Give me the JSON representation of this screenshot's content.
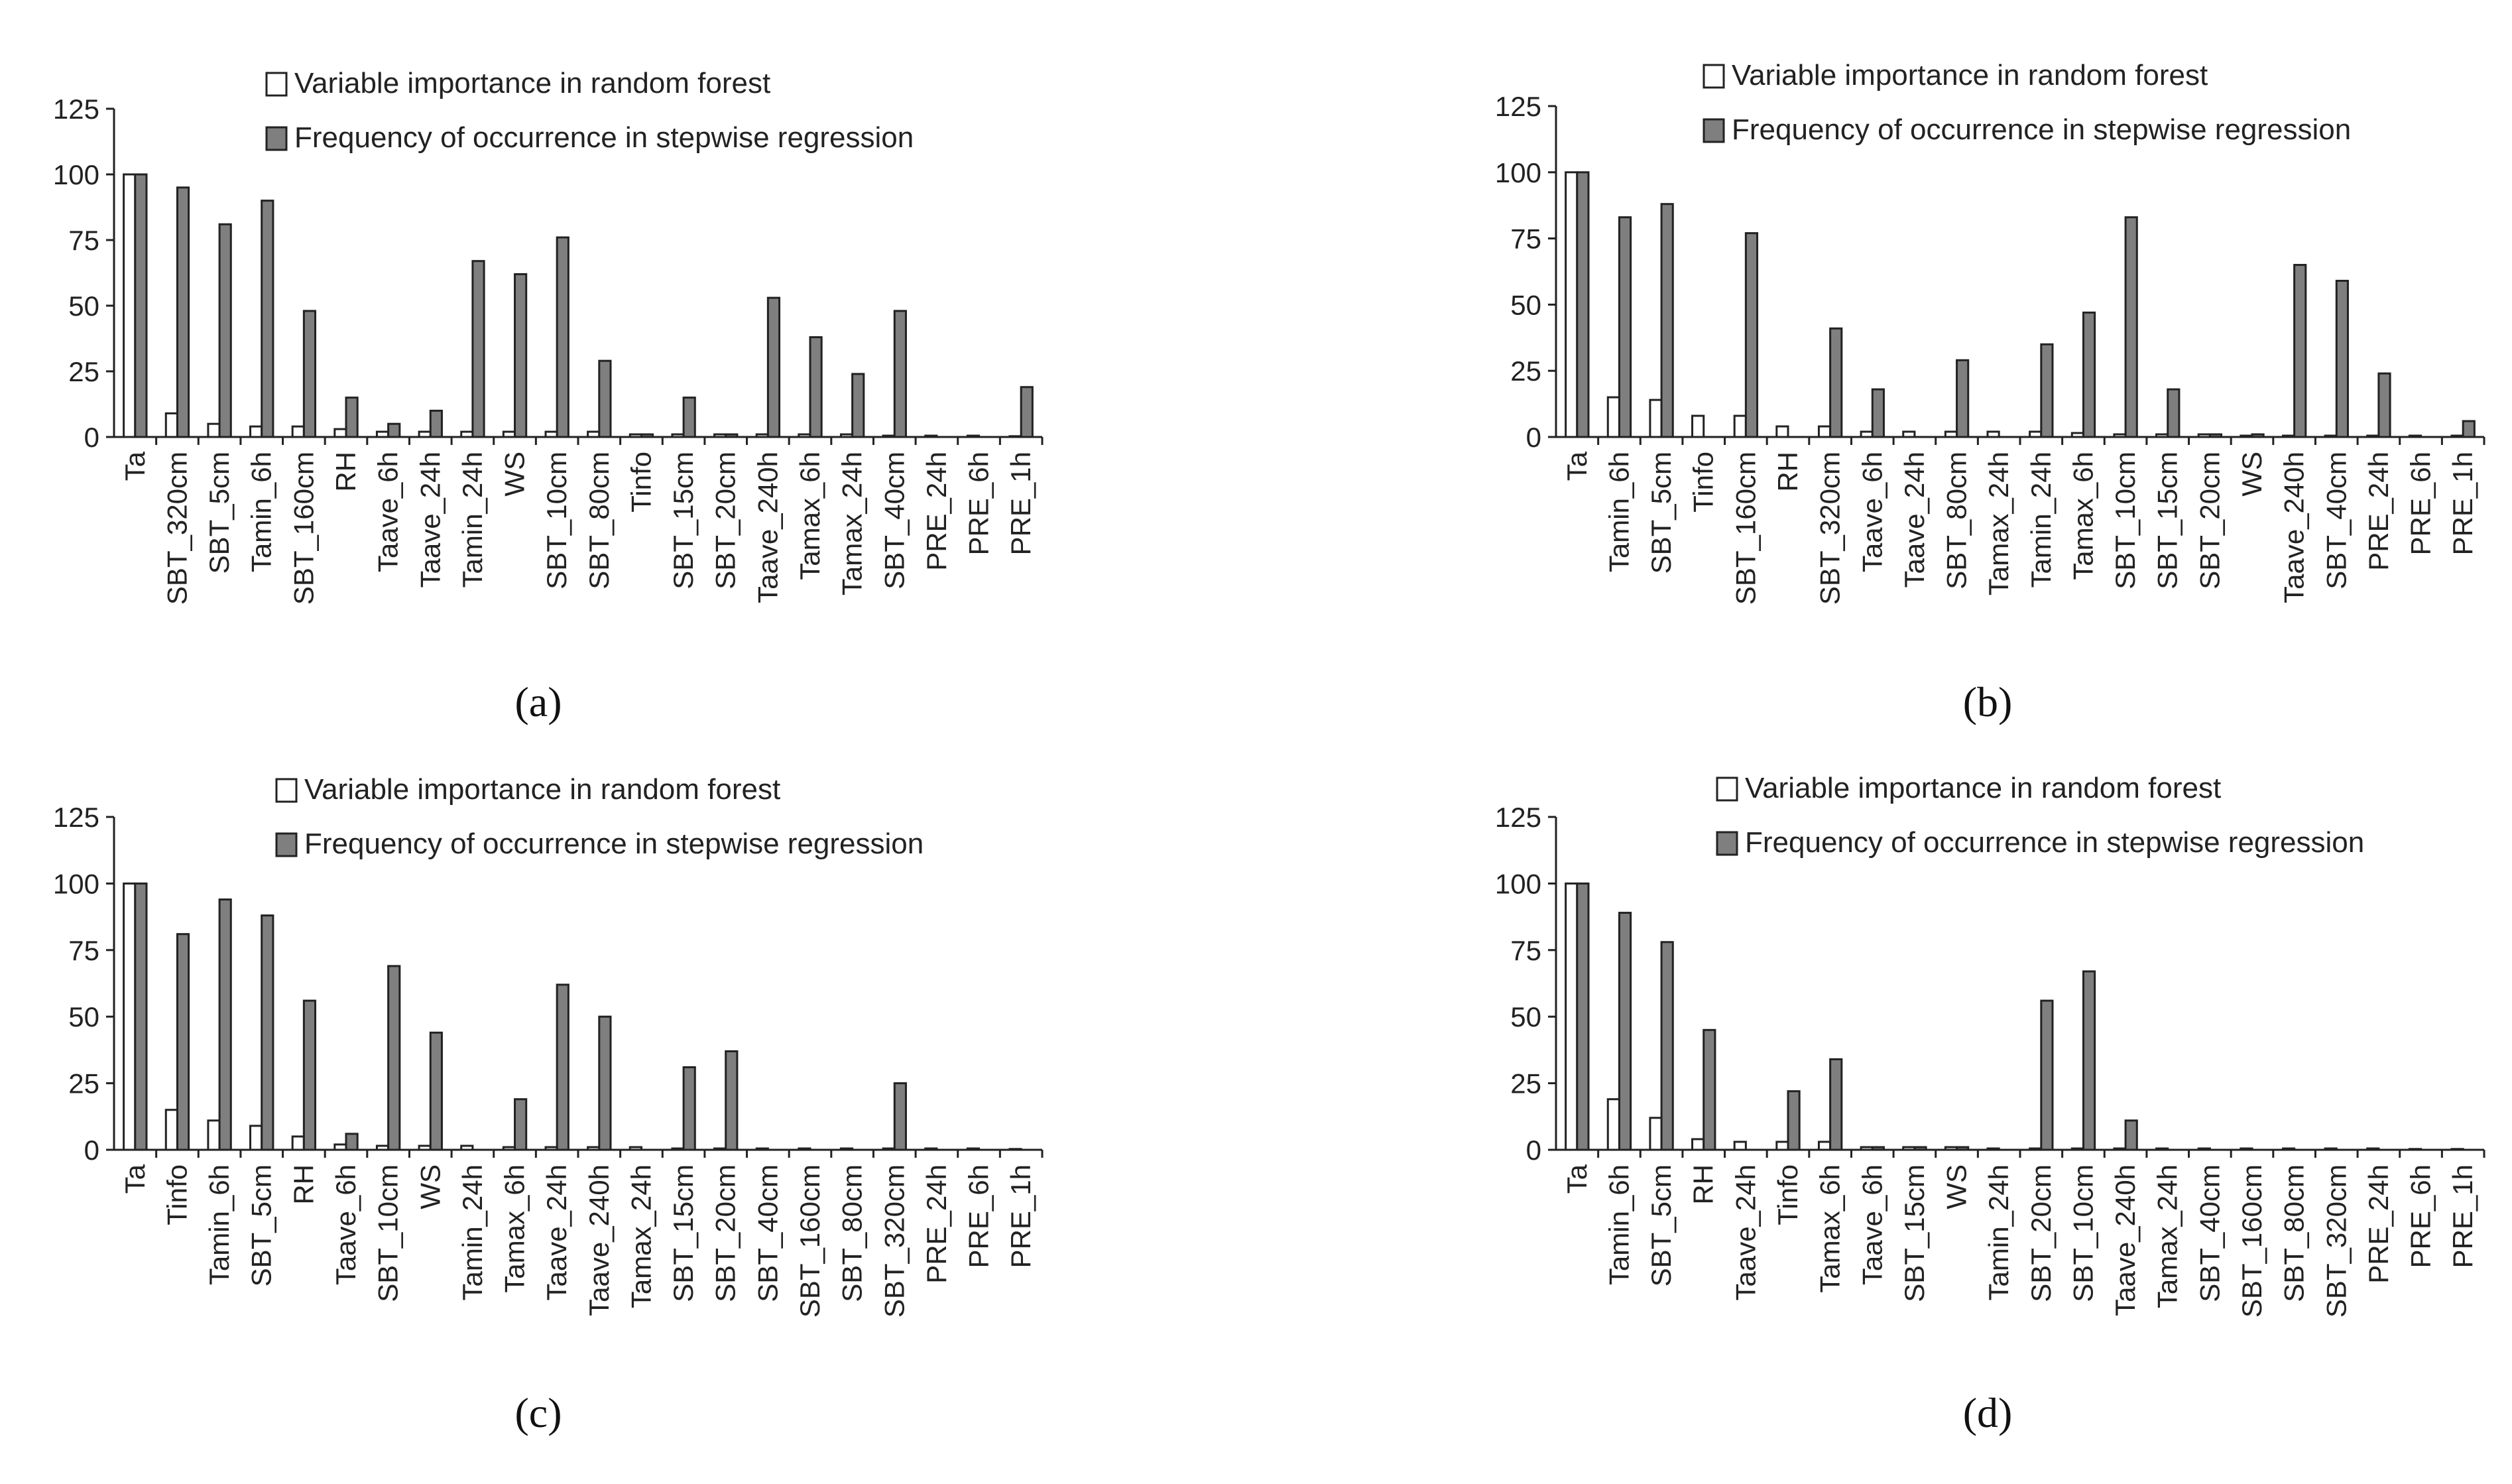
{
  "legend": {
    "rf_label": "Variable importance in random forest",
    "sw_label": "Frequency of occurrence in stepwise regression"
  },
  "colors": {
    "rf_fill": "#ffffff",
    "sw_fill": "#7f7f7f",
    "stroke": "#222222"
  },
  "chart_data": [
    {
      "type": "bar",
      "panel_label": "(a)",
      "ylim": [
        0,
        125
      ],
      "yticks": [
        "0",
        "25",
        "50",
        "75",
        "100",
        "125"
      ],
      "categories": [
        "Ta",
        "SBT_320cm",
        "SBT_5cm",
        "Tamin_6h",
        "SBT_160cm",
        "RH",
        "Taave_6h",
        "Taave_24h",
        "Tamin_24h",
        "WS",
        "SBT_10cm",
        "SBT_80cm",
        "Tinfo",
        "SBT_15cm",
        "SBT_20cm",
        "Taave_240h",
        "Tamax_6h",
        "Tamax_24h",
        "SBT_40cm",
        "PRE_24h",
        "PRE_6h",
        "PRE_1h"
      ],
      "series": [
        {
          "name": "Variable importance in random forest",
          "values": [
            100,
            9,
            5,
            4,
            4,
            3,
            2,
            2,
            2,
            2,
            2,
            2,
            1,
            1,
            1,
            1,
            1,
            1,
            0.5,
            0.5,
            0.5,
            0.3
          ]
        },
        {
          "name": "Frequency of occurrence in stepwise regression",
          "values": [
            100,
            95,
            81,
            90,
            48,
            15,
            5,
            10,
            67,
            62,
            76,
            29,
            1,
            15,
            1,
            53,
            38,
            24,
            48,
            0,
            0,
            19
          ]
        }
      ]
    },
    {
      "type": "bar",
      "panel_label": "(b)",
      "ylim": [
        0,
        125
      ],
      "yticks": [
        "0",
        "25",
        "50",
        "75",
        "100",
        "125"
      ],
      "categories": [
        "Ta",
        "Tamin_6h",
        "SBT_5cm",
        "Tinfo",
        "SBT_160cm",
        "RH",
        "SBT_320cm",
        "Taave_6h",
        "Taave_24h",
        "SBT_80cm",
        "Tamax_24h",
        "Tamin_24h",
        "Tamax_6h",
        "SBT_10cm",
        "SBT_15cm",
        "SBT_20cm",
        "WS",
        "Taave_240h",
        "SBT_40cm",
        "PRE_24h",
        "PRE_6h",
        "PRE_1h"
      ],
      "series": [
        {
          "name": "Variable importance in random forest",
          "values": [
            100,
            15,
            14,
            8,
            8,
            4,
            4,
            2,
            2,
            2,
            2,
            2,
            1.5,
            1,
            1,
            1,
            0.5,
            0.5,
            0.5,
            0.5,
            0.5,
            0.5
          ]
        },
        {
          "name": "Frequency of occurrence in stepwise regression",
          "values": [
            100,
            83,
            88,
            0,
            77,
            0,
            41,
            18,
            0,
            29,
            0,
            35,
            47,
            83,
            18,
            1,
            1,
            65,
            59,
            24,
            0,
            6
          ]
        }
      ]
    },
    {
      "type": "bar",
      "panel_label": "(c)",
      "ylim": [
        0,
        125
      ],
      "yticks": [
        "0",
        "25",
        "50",
        "75",
        "100",
        "125"
      ],
      "categories": [
        "Ta",
        "Tinfo",
        "Tamin_6h",
        "SBT_5cm",
        "RH",
        "Taave_6h",
        "SBT_10cm",
        "WS",
        "Tamin_24h",
        "Tamax_6h",
        "Taave_24h",
        "Taave_240h",
        "Tamax_24h",
        "SBT_15cm",
        "SBT_20cm",
        "SBT_40cm",
        "SBT_160cm",
        "SBT_80cm",
        "SBT_320cm",
        "PRE_24h",
        "PRE_6h",
        "PRE_1h"
      ],
      "series": [
        {
          "name": "Variable importance in random forest",
          "values": [
            100,
            15,
            11,
            9,
            5,
            2,
            1.5,
            1.5,
            1.5,
            1,
            1,
            1,
            1,
            0.5,
            0.5,
            0.5,
            0.5,
            0.5,
            0.5,
            0.5,
            0.5,
            0.3
          ]
        },
        {
          "name": "Frequency of occurrence in stepwise regression",
          "values": [
            100,
            81,
            94,
            88,
            56,
            6,
            69,
            44,
            0,
            19,
            62,
            50,
            0,
            31,
            37,
            0,
            0,
            0,
            25,
            0,
            0,
            0
          ]
        }
      ]
    },
    {
      "type": "bar",
      "panel_label": "(d)",
      "ylim": [
        0,
        125
      ],
      "yticks": [
        "0",
        "25",
        "50",
        "75",
        "100",
        "125"
      ],
      "categories": [
        "Ta",
        "Tamin_6h",
        "SBT_5cm",
        "RH",
        "Taave_24h",
        "Tinfo",
        "Tamax_6h",
        "Taave_6h",
        "SBT_15cm",
        "WS",
        "Tamin_24h",
        "SBT_20cm",
        "SBT_10cm",
        "Taave_240h",
        "Tamax_24h",
        "SBT_40cm",
        "SBT_160cm",
        "SBT_80cm",
        "SBT_320cm",
        "PRE_24h",
        "PRE_6h",
        "PRE_1h"
      ],
      "series": [
        {
          "name": "Variable importance in random forest",
          "values": [
            100,
            19,
            12,
            4,
            3,
            3,
            3,
            1,
            1,
            1,
            0.5,
            0.5,
            0.5,
            0.5,
            0.5,
            0.5,
            0.5,
            0.5,
            0.5,
            0.5,
            0.3,
            0.3
          ]
        },
        {
          "name": "Frequency of occurrence in stepwise regression",
          "values": [
            100,
            89,
            78,
            45,
            0,
            22,
            34,
            1,
            1,
            1,
            0,
            56,
            67,
            11,
            0,
            0,
            0,
            0,
            0,
            0,
            0,
            0
          ]
        }
      ]
    }
  ]
}
